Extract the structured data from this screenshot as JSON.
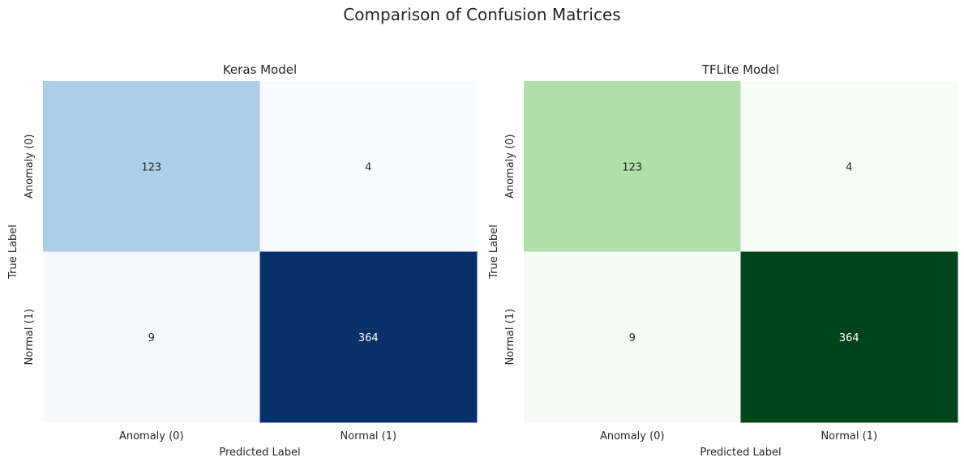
{
  "figure": {
    "suptitle": "Comparison of Confusion Matrices"
  },
  "chart_data": [
    {
      "type": "heatmap",
      "title": "Keras Model",
      "xlabel": "Predicted Label",
      "ylabel": "True Label",
      "x_categories": [
        "Anomaly (0)",
        "Normal (1)"
      ],
      "y_categories": [
        "Anomaly (0)",
        "Normal (1)"
      ],
      "values": [
        [
          123,
          4
        ],
        [
          9,
          364
        ]
      ],
      "colormap": "Blues",
      "colorbar": false,
      "grid": false,
      "cell_colors": [
        [
          "#abcfe6",
          "#f7fbff"
        ],
        [
          "#f5f9fe",
          "#08306b"
        ]
      ],
      "annotation_colors": [
        [
          "#262626",
          "#262626"
        ],
        [
          "#262626",
          "#ffffff"
        ]
      ]
    },
    {
      "type": "heatmap",
      "title": "TFLite Model",
      "xlabel": "Predicted Label",
      "ylabel": "True Label",
      "x_categories": [
        "Anomaly (0)",
        "Normal (1)"
      ],
      "y_categories": [
        "Anomaly (0)",
        "Normal (1)"
      ],
      "values": [
        [
          123,
          4
        ],
        [
          9,
          364
        ]
      ],
      "colormap": "Greens",
      "colorbar": false,
      "grid": false,
      "cell_colors": [
        [
          "#b0dfaa",
          "#f7fcf5"
        ],
        [
          "#f4fbf2",
          "#00441b"
        ]
      ],
      "annotation_colors": [
        [
          "#262626",
          "#262626"
        ],
        [
          "#262626",
          "#ffffff"
        ]
      ]
    }
  ]
}
